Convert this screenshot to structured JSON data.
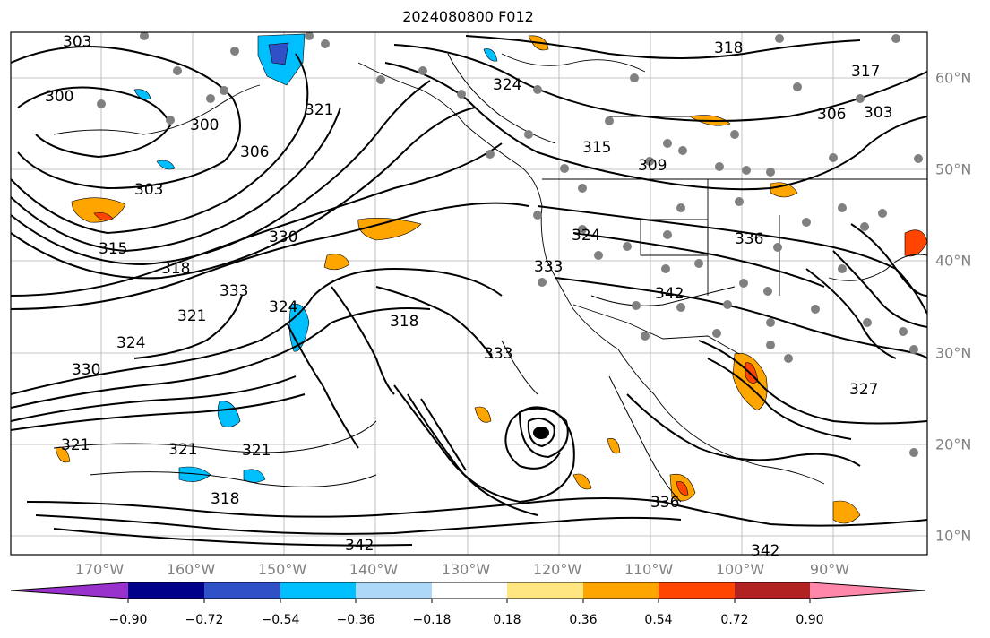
{
  "title": "2024080800 F012",
  "lon_labels": [
    "170°W",
    "160°W",
    "150°W",
    "140°W",
    "130°W",
    "120°W",
    "110°W",
    "100°W",
    "90°W"
  ],
  "lat_labels": [
    "60°N",
    "50°N",
    "40°N",
    "30°N",
    "20°N",
    "10°N"
  ],
  "contour_labels": [
    "303",
    "300",
    "300",
    "321",
    "306",
    "303",
    "315",
    "318",
    "330",
    "333",
    "321",
    "324",
    "324",
    "318",
    "330",
    "321",
    "321",
    "321",
    "318",
    "324",
    "315",
    "309",
    "306",
    "303",
    "317",
    "318",
    "324",
    "333",
    "342",
    "336",
    "342",
    "342",
    "333",
    "336",
    "327"
  ],
  "colorbar": {
    "ticks": [
      "−0.90",
      "−0.72",
      "−0.54",
      "−0.36",
      "−0.18",
      "0.18",
      "0.36",
      "0.54",
      "0.72",
      "0.90"
    ],
    "colors": [
      "#9932cc",
      "#00008b",
      "#3050c8",
      "#00bfff",
      "#add8f8",
      "#ffffff",
      "#ffe680",
      "#ffa500",
      "#ff4500",
      "#b22222",
      "#ff88aa"
    ]
  }
}
